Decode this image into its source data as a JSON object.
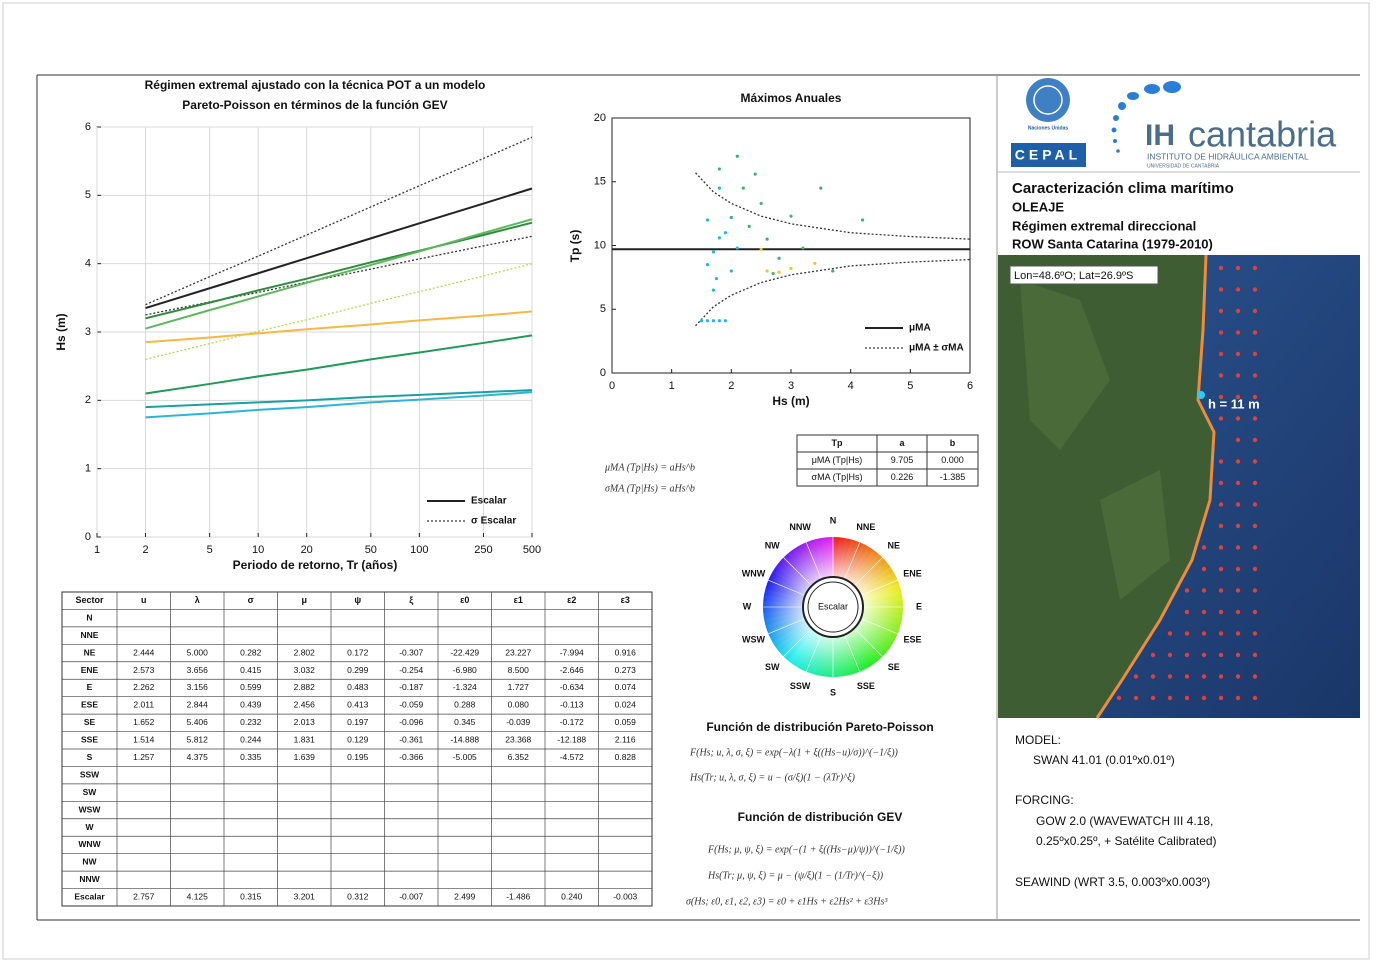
{
  "chart_data": [
    {
      "type": "line",
      "title": [
        "Régimen extremal ajustado con la técnica POT a un modelo",
        "Pareto-Poisson en términos de la función GEV"
      ],
      "x_label": "Periodo de retorno, Tr (años)",
      "y_label": "Hs (m)",
      "x": [
        2,
        5,
        10,
        20,
        50,
        100,
        250,
        500
      ],
      "xscale": "log",
      "xlim": [
        1,
        500
      ],
      "ylim": [
        0,
        6
      ],
      "xticks": [
        1,
        2,
        5,
        10,
        20,
        50,
        100,
        250,
        500
      ],
      "yticks": [
        0,
        1,
        2,
        3,
        4,
        5,
        6
      ],
      "grid": true,
      "legend": "lower right",
      "series": [
        {
          "name": "Escalar",
          "color": "#222222",
          "values": [
            3.35,
            3.64,
            3.86,
            4.08,
            4.37,
            4.59,
            4.88,
            5.1
          ]
        },
        {
          "name": "σ Escalar",
          "color": "#333333",
          "linestyle": "dotted",
          "values": [
            3.4,
            3.81,
            4.11,
            4.42,
            4.83,
            5.14,
            5.54,
            5.85
          ]
        },
        {
          "color": "#333333",
          "linestyle": "dotted",
          "values": [
            3.25,
            3.44,
            3.58,
            3.73,
            3.92,
            4.07,
            4.26,
            4.4
          ]
        },
        {
          "color": "#2e8b3e",
          "values": [
            3.2,
            3.43,
            3.61,
            3.78,
            4.02,
            4.19,
            4.42,
            4.6
          ]
        },
        {
          "color": "#5cb85c",
          "values": [
            3.05,
            3.32,
            3.52,
            3.72,
            3.98,
            4.18,
            4.45,
            4.65
          ]
        },
        {
          "color": "#b5d94a",
          "linestyle": "dotted",
          "values": [
            2.6,
            2.83,
            3.01,
            3.18,
            3.42,
            3.59,
            3.82,
            4.0
          ]
        },
        {
          "color": "#f5b942",
          "values": [
            2.85,
            2.92,
            2.98,
            3.04,
            3.11,
            3.17,
            3.24,
            3.3
          ]
        },
        {
          "color": "#1e9a5a",
          "values": [
            2.1,
            2.24,
            2.35,
            2.45,
            2.6,
            2.7,
            2.84,
            2.95
          ]
        },
        {
          "color": "#1aa0a0",
          "values": [
            1.9,
            1.94,
            1.97,
            2.0,
            2.05,
            2.08,
            2.12,
            2.15
          ]
        },
        {
          "color": "#29b6d8",
          "values": [
            1.75,
            1.81,
            1.86,
            1.9,
            1.97,
            2.01,
            2.07,
            2.12
          ]
        }
      ]
    },
    {
      "type": "scatter",
      "title": "Máximos Anuales",
      "x_label": "Hs (m)",
      "y_label": "Tp (s)",
      "xlim": [
        0,
        6
      ],
      "ylim": [
        0,
        20
      ],
      "xticks": [
        0,
        1,
        2,
        3,
        4,
        5,
        6
      ],
      "yticks": [
        0,
        5,
        10,
        15,
        20
      ],
      "legend": "lower right",
      "series": [
        {
          "type": "line",
          "name": "μMA",
          "color": "#222222",
          "x": [
            0,
            6
          ],
          "values": [
            9.705,
            9.705
          ]
        },
        {
          "type": "line",
          "name": "μMA ± σMA",
          "color": "#333333",
          "linestyle": "dotted",
          "x": [
            1.4,
            1.7,
            2,
            2.5,
            3,
            4,
            5,
            6
          ],
          "values": [
            15.7,
            14.2,
            13.3,
            12.3,
            11.7,
            11.0,
            10.7,
            10.5
          ]
        },
        {
          "type": "line",
          "color": "#333333",
          "linestyle": "dotted",
          "x": [
            1.4,
            1.7,
            2,
            2.5,
            3,
            4,
            5,
            6
          ],
          "values": [
            3.7,
            5.2,
            6.1,
            7.1,
            7.7,
            8.4,
            8.7,
            8.9
          ]
        },
        {
          "type": "scatter",
          "color": "#29b6d8",
          "x": [
            1.5,
            1.6,
            1.7,
            1.8,
            1.9,
            1.6,
            1.7,
            1.8,
            1.9,
            1.7,
            2.0,
            1.6,
            1.8,
            2.1,
            1.75
          ],
          "values": [
            4.1,
            4.1,
            4.1,
            4.1,
            4.1,
            8.5,
            9.5,
            10.6,
            11,
            6.5,
            8.0,
            12,
            14.5,
            9.8,
            7.4
          ]
        },
        {
          "type": "scatter",
          "color": "#3cb371",
          "x": [
            1.8,
            2.1,
            2.2,
            2.5,
            2.3,
            2.6,
            3.0,
            3.5,
            3.2,
            2.8,
            4.2,
            2.4,
            2.0,
            3.7,
            2.7
          ],
          "values": [
            16,
            17,
            14.5,
            13.3,
            11.5,
            10.5,
            12.3,
            14.5,
            9.8,
            9.0,
            12.0,
            15.6,
            12.2,
            8.0,
            7.8
          ]
        },
        {
          "type": "scatter",
          "color": "#e5c63a",
          "x": [
            2.6,
            3.0,
            2.8,
            3.4,
            2.5
          ],
          "values": [
            8.0,
            8.2,
            7.9,
            8.6,
            9.7
          ]
        }
      ]
    }
  ],
  "coeff_table": {
    "header": [
      "Tp",
      "a",
      "b"
    ],
    "rows": [
      [
        "μMA (Tp|Hs)",
        "9.705",
        "0.000"
      ],
      [
        "σMA (Tp|Hs)",
        "0.226",
        "-1.385"
      ]
    ]
  },
  "formulas": {
    "model": [
      "μMA (Tp|Hs)  =  aHs^b",
      "σMA (Tp|Hs)  =  aHs^b"
    ],
    "pareto_title": "Función de distribución Pareto-Poisson",
    "pareto": [
      "F(Hs; u, λ, σ, ξ)  =  exp(−λ(1 + ξ((Hs−u)/σ))^(−1/ξ))",
      "Hs(Tr; u, λ, σ, ξ)  =  u − (σ/ξ)(1 − (λTr)^ξ)"
    ],
    "gev_title": "Función de distribución GEV",
    "gev": [
      "F(Hs; μ, ψ, ξ)  =  exp(−(1 + ξ((Hs−μ)/ψ))^(−1/ξ))",
      "Hs(Tr; μ, ψ, ξ)  =  μ − (ψ/ξ)(1 − (1/Tr)^(−ξ))",
      "σ(Hs; ε0, ε1, ε2, ε3)  =  ε0 + ε1Hs + ε2Hs² + ε3Hs³"
    ]
  },
  "compass": {
    "labels": [
      "N",
      "NNE",
      "NE",
      "ENE",
      "E",
      "ESE",
      "SE",
      "SSE",
      "S",
      "SSW",
      "SW",
      "WSW",
      "W",
      "WNW",
      "NW",
      "NNW"
    ],
    "center": "Escalar"
  },
  "table": {
    "header": [
      "Sector",
      "u",
      "λ",
      "σ",
      "μ",
      "ψ",
      "ξ",
      "ε0",
      "ε1",
      "ε2",
      "ε3"
    ],
    "rows": [
      [
        "N"
      ],
      [
        "NNE"
      ],
      [
        "NE",
        "2.444",
        "5.000",
        "0.282",
        "2.802",
        "0.172",
        "-0.307",
        "-22.429",
        "23.227",
        "-7.994",
        "0.916"
      ],
      [
        "ENE",
        "2.573",
        "3.656",
        "0.415",
        "3.032",
        "0.299",
        "-0.254",
        "-6.980",
        "8.500",
        "-2.646",
        "0.273"
      ],
      [
        "E",
        "2.262",
        "3.156",
        "0.599",
        "2.882",
        "0.483",
        "-0.187",
        "-1.324",
        "1.727",
        "-0.634",
        "0.074"
      ],
      [
        "ESE",
        "2.011",
        "2.844",
        "0.439",
        "2.456",
        "0.413",
        "-0.059",
        "0.288",
        "0.080",
        "-0.113",
        "0.024"
      ],
      [
        "SE",
        "1.652",
        "5.406",
        "0.232",
        "2.013",
        "0.197",
        "-0.096",
        "0.345",
        "-0.039",
        "-0.172",
        "0.059"
      ],
      [
        "SSE",
        "1.514",
        "5.812",
        "0.244",
        "1.831",
        "0.129",
        "-0.361",
        "-14.888",
        "23.368",
        "-12.188",
        "2.116"
      ],
      [
        "S",
        "1.257",
        "4.375",
        "0.335",
        "1.639",
        "0.195",
        "-0.366",
        "-5.005",
        "6.352",
        "-4.572",
        "0.828"
      ],
      [
        "SSW"
      ],
      [
        "SW"
      ],
      [
        "WSW"
      ],
      [
        "W"
      ],
      [
        "WNW"
      ],
      [
        "NW"
      ],
      [
        "NNW"
      ],
      [
        "Escalar",
        "2.757",
        "4.125",
        "0.315",
        "3.201",
        "0.312",
        "-0.007",
        "2.499",
        "-1.486",
        "0.240",
        "-0.003"
      ]
    ]
  },
  "header": {
    "un": "Naciones Unidas",
    "cepal": "CEPAL",
    "ih": "IH",
    "cantabria": "cantabria",
    "institute": "INSTITUTO DE HIDRÁULICA AMBIENTAL",
    "university": "UNIVERSIDAD DE CANTABRIA",
    "title_lines": [
      "Caracterización clima marítimo",
      "OLEAJE",
      "Régimen extremal direccional",
      "ROW Santa Catarina (1979-2010)"
    ]
  },
  "map": {
    "coords": "Lon=48.6ºO; Lat=26.9ºS",
    "depth": "h = 11 m"
  },
  "info": [
    "MODEL:",
    "SWAN 41.01 (0.01ºx0.01º)",
    "FORCING:",
    "GOW 2.0 (WAVEWATCH III 4.18,",
    "0.25ºx0.25º, + Satélite Calibrated)",
    "SEAWIND (WRT 3.5, 0.003ºx0.003º)"
  ]
}
